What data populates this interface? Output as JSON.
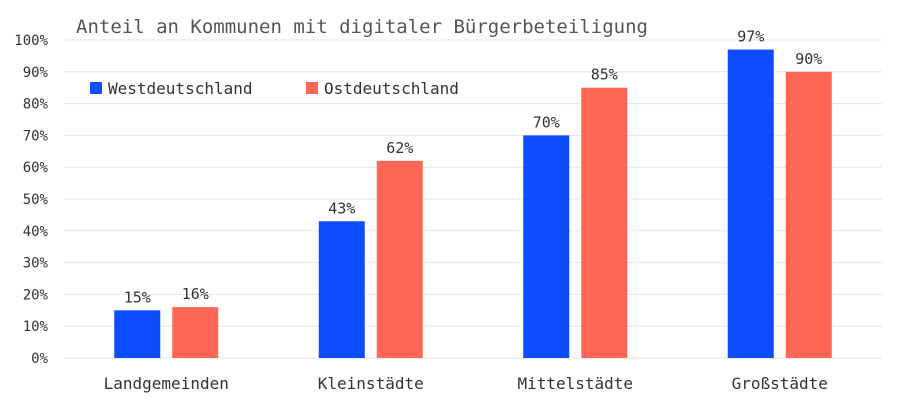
{
  "chart_data": {
    "type": "bar",
    "title": "Anteil an Kommunen mit digitaler Bürgerbeteiligung",
    "xlabel": "",
    "ylabel": "",
    "categories": [
      "Landgemeinden",
      "Kleinstädte",
      "Mittelstädte",
      "Großstädte"
    ],
    "series": [
      {
        "name": "Westdeutschland",
        "color": "#0d4cff",
        "values": [
          15,
          43,
          70,
          97
        ]
      },
      {
        "name": "Ostdeutschland",
        "color": "#ff6655",
        "values": [
          16,
          62,
          85,
          90
        ]
      }
    ],
    "data_labels": [
      [
        "15%",
        "43%",
        "70%",
        "97%"
      ],
      [
        "16%",
        "62%",
        "85%",
        "90%"
      ]
    ],
    "ylim": [
      0,
      100
    ],
    "yticks": [
      0,
      10,
      20,
      30,
      40,
      50,
      60,
      70,
      80,
      90,
      100
    ],
    "ytick_labels": [
      "0%",
      "10%",
      "20%",
      "30%",
      "40%",
      "50%",
      "60%",
      "70%",
      "80%",
      "90%",
      "100%"
    ],
    "grid": true,
    "legend_position": "top-left"
  }
}
